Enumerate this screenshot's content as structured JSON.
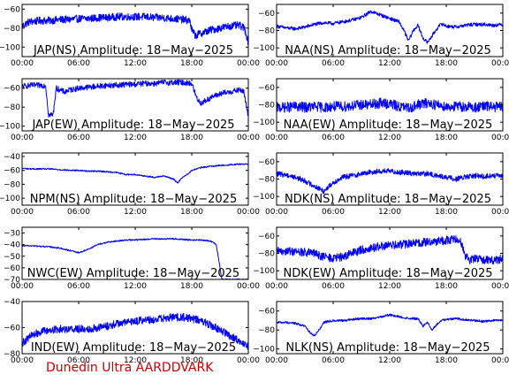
{
  "footer": {
    "credit": "Dunedin Ultra AARDDVARK"
  },
  "colors": {
    "series": "#0000ff",
    "axes": "#000000",
    "credit": "#cc0000"
  },
  "chart_data": [
    {
      "type": "line",
      "title": "JAP(NS) Amplitude: 18−May−2025",
      "xlabel": "",
      "ylabel": "",
      "xlim": [
        0,
        24
      ],
      "ylim": [
        -110,
        -55
      ],
      "xticks": [
        "00:00",
        "06:00",
        "12:00",
        "18:00",
        "00:00"
      ],
      "yticks": [
        -100,
        -80,
        -60
      ],
      "ytick_labels": [
        "−100",
        "−80",
        "−60"
      ],
      "series": [
        {
          "x": [
            0,
            0.3,
            0.6,
            1,
            2,
            3,
            4,
            5,
            6,
            7,
            8,
            9,
            10,
            11,
            12,
            13,
            14,
            15,
            16,
            17,
            17.8,
            18,
            18.4,
            18.8,
            19.4,
            20,
            21,
            22,
            23,
            23.6,
            24
          ],
          "values": [
            -78,
            -76,
            -74,
            -73,
            -72,
            -72,
            -71,
            -71,
            -70,
            -70,
            -69,
            -69,
            -68,
            -68,
            -68,
            -68,
            -69,
            -69,
            -70,
            -71,
            -72,
            -82,
            -88,
            -86,
            -84,
            -82,
            -80,
            -78,
            -77,
            -80,
            -95
          ],
          "noise": 4
        }
      ]
    },
    {
      "type": "line",
      "title": "NAA(NS) Amplitude: 18−May−2025",
      "xlabel": "",
      "ylabel": "",
      "xlim": [
        0,
        24
      ],
      "ylim": [
        -110,
        -50
      ],
      "xticks": [
        "00:00",
        "06:00",
        "12:00",
        "18:00",
        "00:00"
      ],
      "yticks": [
        -100,
        -80,
        -60
      ],
      "ytick_labels": [
        "−100",
        "−80",
        "−60"
      ],
      "series": [
        {
          "x": [
            0,
            1,
            2,
            3,
            4,
            5,
            6,
            7,
            8,
            9,
            10,
            11,
            12,
            13,
            13.5,
            14,
            14.5,
            15,
            15.5,
            16,
            16.5,
            17,
            17.5,
            18,
            19,
            20,
            21,
            22,
            23,
            24
          ],
          "values": [
            -75,
            -77,
            -78,
            -76,
            -73,
            -71,
            -72,
            -70,
            -68,
            -65,
            -58,
            -62,
            -66,
            -70,
            -80,
            -92,
            -80,
            -74,
            -88,
            -94,
            -86,
            -78,
            -72,
            -75,
            -76,
            -74,
            -73,
            -73,
            -74,
            -73
          ],
          "noise": 2
        }
      ]
    },
    {
      "type": "line",
      "title": "JAP(EW) Amplitude: 18−May−2025",
      "xlabel": "",
      "ylabel": "",
      "xlim": [
        0,
        24
      ],
      "ylim": [
        -105,
        -50
      ],
      "xticks": [
        "00:00",
        "06:00",
        "12:00",
        "18:00",
        "00:00"
      ],
      "yticks": [
        -100,
        -80,
        -60
      ],
      "ytick_labels": [
        "−100",
        "−80",
        "−60"
      ],
      "series": [
        {
          "x": [
            0,
            1,
            2,
            2.5,
            2.8,
            3.3,
            3.6,
            4.5,
            5,
            6,
            7,
            8,
            9,
            10,
            11,
            12,
            13,
            14,
            15,
            16,
            17,
            18,
            18.5,
            19,
            20,
            21,
            22,
            23,
            23.5,
            24
          ],
          "values": [
            -58,
            -57,
            -57,
            -57,
            -88,
            -88,
            -60,
            -64,
            -62,
            -60,
            -59,
            -58,
            -57,
            -57,
            -56,
            -56,
            -55,
            -55,
            -54,
            -54,
            -54,
            -55,
            -70,
            -76,
            -70,
            -66,
            -64,
            -62,
            -63,
            -90
          ],
          "noise": 3
        }
      ]
    },
    {
      "type": "line",
      "title": "NAA(EW) Amplitude: 18−May−2025",
      "xlabel": "",
      "ylabel": "",
      "xlim": [
        0,
        24
      ],
      "ylim": [
        -110,
        -50
      ],
      "xticks": [
        "00:00",
        "06:00",
        "12:00",
        "18:00",
        "00:00"
      ],
      "yticks": [
        -100,
        -80,
        -60
      ],
      "ytick_labels": [
        "−100",
        "−80",
        "−60"
      ],
      "series": [
        {
          "x": [
            0,
            1,
            2,
            3,
            4,
            5,
            6,
            7,
            8,
            9,
            10,
            11,
            12,
            13,
            14,
            15,
            16,
            17,
            18,
            19,
            20,
            21,
            22,
            23,
            24
          ],
          "values": [
            -83,
            -83,
            -82,
            -83,
            -82,
            -83,
            -82,
            -82,
            -81,
            -80,
            -80,
            -78,
            -79,
            -82,
            -84,
            -80,
            -78,
            -80,
            -82,
            -82,
            -82,
            -83,
            -82,
            -82,
            -83
          ],
          "noise": 6
        }
      ]
    },
    {
      "type": "line",
      "title": "NPM(NS) Amplitude: 18−May−2025",
      "xlabel": "",
      "ylabel": "",
      "xlim": [
        0,
        24
      ],
      "ylim": [
        -110,
        -35
      ],
      "xticks": [
        "00:00",
        "06:00",
        "12:00",
        "18:00",
        "00:00"
      ],
      "yticks": [
        -100,
        -80,
        -60,
        -40
      ],
      "ytick_labels": [
        "−100",
        "−80",
        "−60",
        "−40"
      ],
      "series": [
        {
          "x": [
            0,
            1,
            2,
            3,
            4,
            5,
            6,
            7,
            8,
            9,
            10,
            11,
            12,
            13,
            14,
            15,
            16,
            16.5,
            17,
            17.5,
            18,
            19,
            20,
            21,
            22,
            23,
            24
          ],
          "values": [
            -57,
            -58,
            -58,
            -58,
            -59,
            -60,
            -60,
            -61,
            -61,
            -62,
            -63,
            -66,
            -66,
            -68,
            -70,
            -68,
            -72,
            -78,
            -70,
            -66,
            -60,
            -56,
            -54,
            -53,
            -52,
            -51,
            -51
          ],
          "noise": 1
        }
      ]
    },
    {
      "type": "line",
      "title": "NDK(NS) Amplitude: 18−May−2025",
      "xlabel": "",
      "ylabel": "",
      "xlim": [
        0,
        24
      ],
      "ylim": [
        -110,
        -50
      ],
      "xticks": [
        "00:00",
        "06:00",
        "12:00",
        "18:00",
        "00:00"
      ],
      "yticks": [
        -100,
        -80,
        -60
      ],
      "ytick_labels": [
        "−100",
        "−80",
        "−60"
      ],
      "series": [
        {
          "x": [
            0,
            1,
            2,
            3,
            4,
            5,
            6,
            7,
            8,
            9,
            10,
            11,
            12,
            13,
            14,
            15,
            16,
            17,
            18,
            19,
            20,
            21,
            22,
            23,
            24
          ],
          "values": [
            -74,
            -75,
            -78,
            -82,
            -88,
            -94,
            -84,
            -78,
            -76,
            -74,
            -72,
            -71,
            -71,
            -72,
            -73,
            -74,
            -74,
            -76,
            -78,
            -80,
            -78,
            -76,
            -77,
            -76,
            -77
          ],
          "noise": 3
        }
      ]
    },
    {
      "type": "line",
      "title": "NWC(EW) Amplitude: 18−May−2025",
      "xlabel": "",
      "ylabel": "",
      "xlim": [
        0,
        24
      ],
      "ylim": [
        -70,
        -25
      ],
      "xticks": [
        "00:00",
        "06:00",
        "12:00",
        "18:00",
        "00:00"
      ],
      "yticks": [
        -70,
        -60,
        -50,
        -40,
        -30
      ],
      "ytick_labels": [
        "−70",
        "−60",
        "−50",
        "−40",
        "−30"
      ],
      "series": [
        {
          "x": [
            0,
            1,
            2,
            3,
            4,
            5,
            6,
            7,
            8,
            9,
            10,
            11,
            12,
            13,
            14,
            15,
            16,
            17,
            18,
            19,
            20,
            20.6,
            20.9,
            21.2
          ],
          "values": [
            -41,
            -41,
            -41.5,
            -42,
            -43,
            -45,
            -47,
            -44,
            -40,
            -38,
            -37,
            -36,
            -36,
            -35.5,
            -35,
            -35,
            -35,
            -35.5,
            -36,
            -36,
            -37,
            -40,
            -55,
            -70
          ],
          "noise": 0.6
        }
      ]
    },
    {
      "type": "line",
      "title": "NDK(EW) Amplitude: 18−May−2025",
      "xlabel": "",
      "ylabel": "",
      "xlim": [
        0,
        24
      ],
      "ylim": [
        -110,
        -50
      ],
      "xticks": [
        "00:00",
        "06:00",
        "12:00",
        "18:00",
        "00:00"
      ],
      "yticks": [
        -100,
        -80,
        -60
      ],
      "ytick_labels": [
        "−100",
        "−80",
        "−60"
      ],
      "series": [
        {
          "x": [
            0,
            1,
            2,
            3,
            4,
            5,
            6,
            7,
            8,
            9,
            10,
            11,
            12,
            13,
            14,
            15,
            16,
            17,
            18,
            19,
            19.5,
            20,
            20.5,
            21,
            22,
            23,
            24
          ],
          "values": [
            -78,
            -77,
            -78,
            -79,
            -80,
            -84,
            -86,
            -84,
            -80,
            -76,
            -74,
            -72,
            -71,
            -70,
            -69,
            -68,
            -67,
            -66,
            -65,
            -64,
            -64,
            -82,
            -88,
            -86,
            -87,
            -88,
            -86
          ],
          "noise": 5
        }
      ]
    },
    {
      "type": "line",
      "title": "IND(EW) Amplitude: 18−May−2025",
      "xlabel": "",
      "ylabel": "",
      "xlim": [
        0,
        24
      ],
      "ylim": [
        -80,
        -40
      ],
      "xticks": [
        "00:00",
        "06:00",
        "12:00",
        "18:00",
        "00:00"
      ],
      "yticks": [
        -80,
        -60,
        -40
      ],
      "ytick_labels": [
        "−80",
        "−60",
        "−40"
      ],
      "series": [
        {
          "x": [
            0,
            0.5,
            1,
            2,
            3,
            4,
            5,
            6,
            7,
            8,
            9,
            10,
            11,
            12,
            13,
            14,
            15,
            16,
            17,
            18,
            19,
            20,
            21,
            22,
            23,
            24
          ],
          "values": [
            -72,
            -69,
            -66,
            -63,
            -62,
            -61,
            -61,
            -61,
            -61,
            -60,
            -59,
            -57,
            -56,
            -55,
            -54,
            -54,
            -53,
            -52,
            -52,
            -53,
            -55,
            -58,
            -62,
            -66,
            -70,
            -75
          ],
          "noise": 3
        }
      ]
    },
    {
      "type": "line",
      "title": "NLK(NS) Amplitude: 18−May−2025",
      "xlabel": "",
      "ylabel": "",
      "xlim": [
        0,
        24
      ],
      "ylim": [
        -105,
        -50
      ],
      "xticks": [
        "00:00",
        "06:00",
        "12:00",
        "18:00",
        "00:00"
      ],
      "yticks": [
        -100,
        -80,
        -60
      ],
      "ytick_labels": [
        "−100",
        "−80",
        "−60"
      ],
      "series": [
        {
          "x": [
            0,
            1,
            2,
            3,
            3.5,
            4,
            4.5,
            5,
            6,
            7,
            8,
            9,
            10,
            11,
            12,
            13,
            14,
            15,
            15.5,
            16,
            16.5,
            17,
            17.5,
            18,
            19,
            20,
            21,
            22,
            23,
            24
          ],
          "values": [
            -72,
            -72,
            -73,
            -76,
            -82,
            -86,
            -80,
            -72,
            -70,
            -70,
            -69,
            -68,
            -68,
            -66,
            -64,
            -66,
            -68,
            -68,
            -76,
            -72,
            -80,
            -74,
            -70,
            -69,
            -68,
            -69,
            -70,
            -71,
            -70,
            -70
          ],
          "noise": 1.2
        }
      ]
    }
  ]
}
